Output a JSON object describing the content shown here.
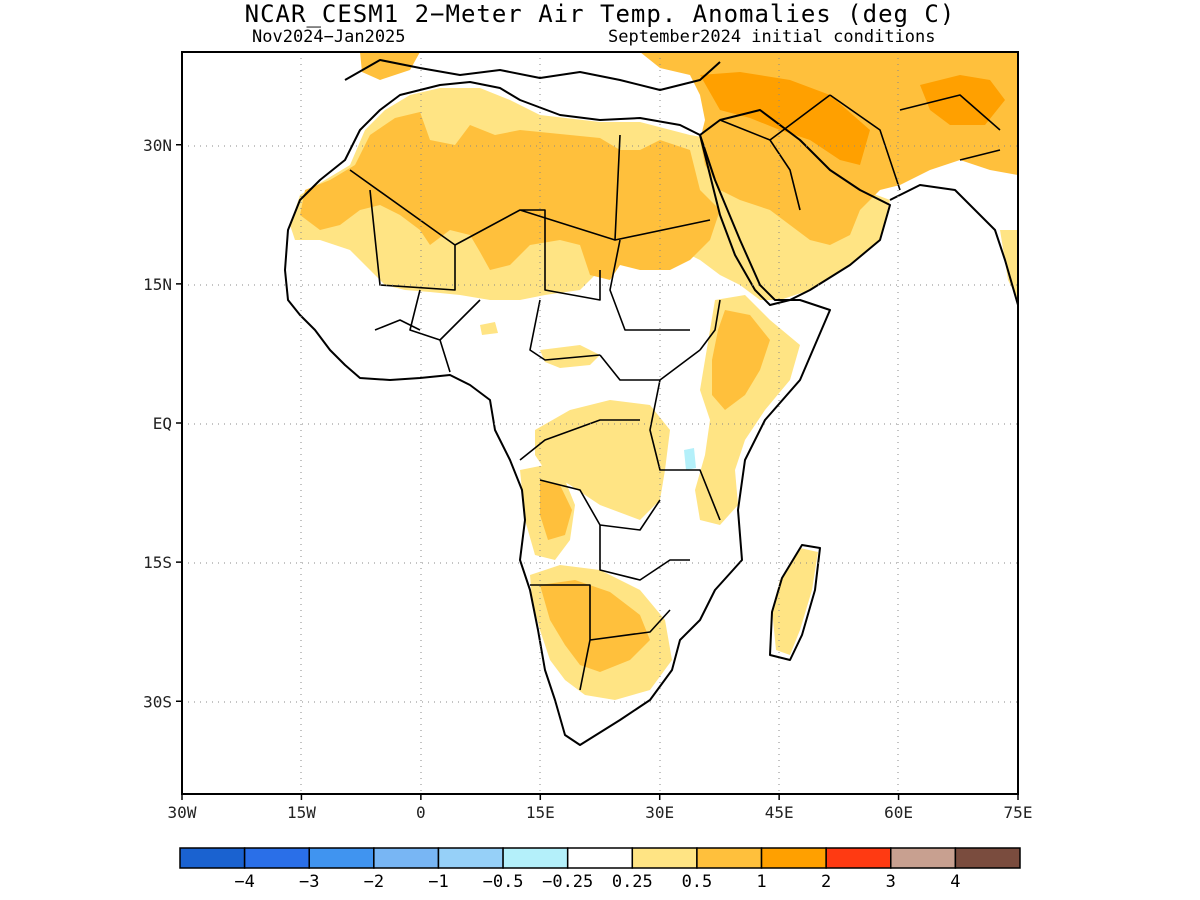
{
  "title": "NCAR_CESM1 2−Meter Air Temp. Anomalies (deg C)",
  "period": "Nov2024−Jan2025",
  "initial_conditions": "September2024 initial conditions",
  "map": {
    "lon_range": [
      -30,
      75
    ],
    "lat_range": [
      -40,
      40
    ],
    "gridlines": "dotted",
    "y_ticks": [
      {
        "lat": 30,
        "label": "30N"
      },
      {
        "lat": 15,
        "label": "15N"
      },
      {
        "lat": 0,
        "label": "EQ"
      },
      {
        "lat": -15,
        "label": "15S"
      },
      {
        "lat": -30,
        "label": "30S"
      }
    ],
    "x_ticks": [
      {
        "lon": -30,
        "label": "30W"
      },
      {
        "lon": -15,
        "label": "15W"
      },
      {
        "lon": 0,
        "label": "0"
      },
      {
        "lon": 15,
        "label": "15E"
      },
      {
        "lon": 30,
        "label": "30E"
      },
      {
        "lon": 45,
        "label": "45E"
      },
      {
        "lon": 60,
        "label": "60E"
      },
      {
        "lon": 75,
        "label": "75E"
      }
    ]
  },
  "colorbar": {
    "colors": [
      "#1a62d0",
      "#2a6fe8",
      "#4094f0",
      "#78b6f4",
      "#96d0f8",
      "#b4f0fa",
      "#ffffff",
      "#ffe484",
      "#ffc03c",
      "#ffa000",
      "#ff3a12",
      "#c8a090",
      "#7a4c3e"
    ],
    "labels": [
      "−4",
      "−3",
      "−2",
      "−1",
      "−0.5",
      "−0.25",
      "0.25",
      "0.5",
      "1",
      "2",
      "3",
      "4"
    ]
  }
}
